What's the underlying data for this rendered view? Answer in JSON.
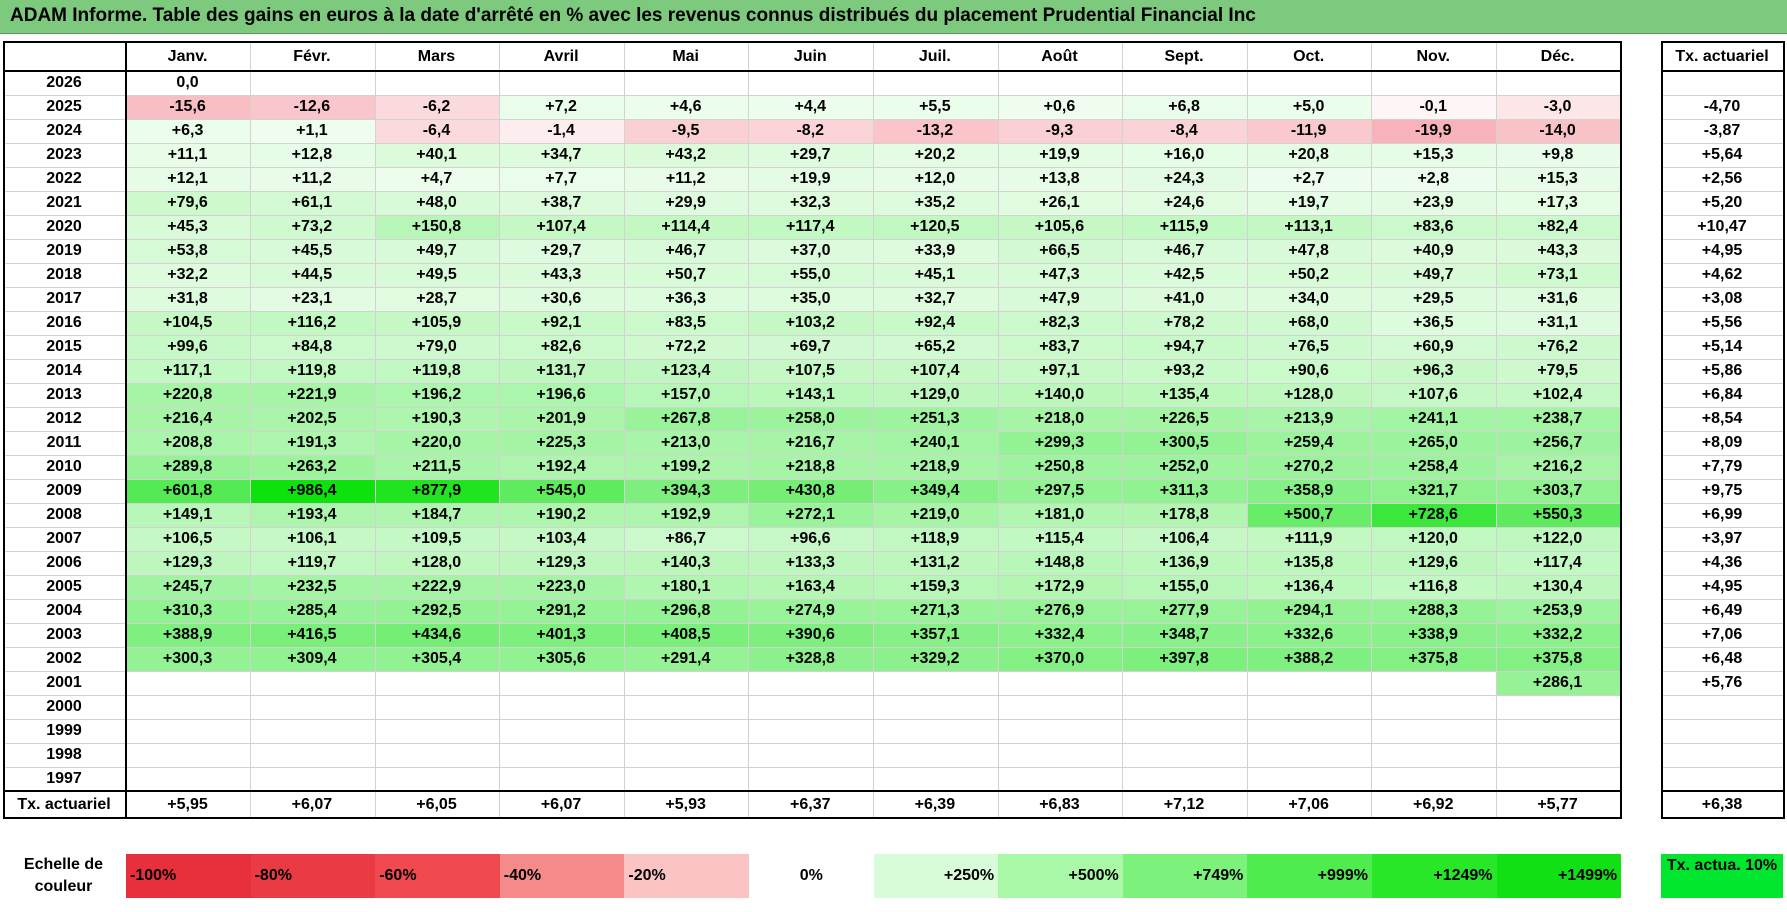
{
  "title": "ADAM Informe. Table des gains en euros à la date d'arrêté en % avec les revenus connus distribués du placement Prudential Financial Inc",
  "months": [
    "Janv.",
    "Févr.",
    "Mars",
    "Avril",
    "Mai",
    "Juin",
    "Juil.",
    "Août",
    "Sept.",
    "Oct.",
    "Nov.",
    "Déc."
  ],
  "actuarial_header": "Tx. actuariel",
  "footer_label": "Tx. actuariel",
  "rows": [
    {
      "year": "2026",
      "values": [
        "0,0",
        "",
        "",
        "",
        "",
        "",
        "",
        "",
        "",
        "",
        "",
        ""
      ],
      "actuarial": ""
    },
    {
      "year": "2025",
      "values": [
        "-15,6",
        "-12,6",
        "-6,2",
        "+7,2",
        "+4,6",
        "+4,4",
        "+5,5",
        "+0,6",
        "+6,8",
        "+5,0",
        "-0,1",
        "-3,0"
      ],
      "actuarial": "-4,70"
    },
    {
      "year": "2024",
      "values": [
        "+6,3",
        "+1,1",
        "-6,4",
        "-1,4",
        "-9,5",
        "-8,2",
        "-13,2",
        "-9,3",
        "-8,4",
        "-11,9",
        "-19,9",
        "-14,0"
      ],
      "actuarial": "-3,87"
    },
    {
      "year": "2023",
      "values": [
        "+11,1",
        "+12,8",
        "+40,1",
        "+34,7",
        "+43,2",
        "+29,7",
        "+20,2",
        "+19,9",
        "+16,0",
        "+20,8",
        "+15,3",
        "+9,8"
      ],
      "actuarial": "+5,64"
    },
    {
      "year": "2022",
      "values": [
        "+12,1",
        "+11,2",
        "+4,7",
        "+7,7",
        "+11,2",
        "+19,9",
        "+12,0",
        "+13,8",
        "+24,3",
        "+2,7",
        "+2,8",
        "+15,3"
      ],
      "actuarial": "+2,56"
    },
    {
      "year": "2021",
      "values": [
        "+79,6",
        "+61,1",
        "+48,0",
        "+38,7",
        "+29,9",
        "+32,3",
        "+35,2",
        "+26,1",
        "+24,6",
        "+19,7",
        "+23,9",
        "+17,3"
      ],
      "actuarial": "+5,20"
    },
    {
      "year": "2020",
      "values": [
        "+45,3",
        "+73,2",
        "+150,8",
        "+107,4",
        "+114,4",
        "+117,4",
        "+120,5",
        "+105,6",
        "+115,9",
        "+113,1",
        "+83,6",
        "+82,4"
      ],
      "actuarial": "+10,47"
    },
    {
      "year": "2019",
      "values": [
        "+53,8",
        "+45,5",
        "+49,7",
        "+29,7",
        "+46,7",
        "+37,0",
        "+33,9",
        "+66,5",
        "+46,7",
        "+47,8",
        "+40,9",
        "+43,3"
      ],
      "actuarial": "+4,95"
    },
    {
      "year": "2018",
      "values": [
        "+32,2",
        "+44,5",
        "+49,5",
        "+43,3",
        "+50,7",
        "+55,0",
        "+45,1",
        "+47,3",
        "+42,5",
        "+50,2",
        "+49,7",
        "+73,1"
      ],
      "actuarial": "+4,62"
    },
    {
      "year": "2017",
      "values": [
        "+31,8",
        "+23,1",
        "+28,7",
        "+30,6",
        "+36,3",
        "+35,0",
        "+32,7",
        "+47,9",
        "+41,0",
        "+34,0",
        "+29,5",
        "+31,6"
      ],
      "actuarial": "+3,08"
    },
    {
      "year": "2016",
      "values": [
        "+104,5",
        "+116,2",
        "+105,9",
        "+92,1",
        "+83,5",
        "+103,2",
        "+92,4",
        "+82,3",
        "+78,2",
        "+68,0",
        "+36,5",
        "+31,1"
      ],
      "actuarial": "+5,56"
    },
    {
      "year": "2015",
      "values": [
        "+99,6",
        "+84,8",
        "+79,0",
        "+82,6",
        "+72,2",
        "+69,7",
        "+65,2",
        "+83,7",
        "+94,7",
        "+76,5",
        "+60,9",
        "+76,2"
      ],
      "actuarial": "+5,14"
    },
    {
      "year": "2014",
      "values": [
        "+117,1",
        "+119,8",
        "+119,8",
        "+131,7",
        "+123,4",
        "+107,5",
        "+107,4",
        "+97,1",
        "+93,2",
        "+90,6",
        "+96,3",
        "+79,5"
      ],
      "actuarial": "+5,86"
    },
    {
      "year": "2013",
      "values": [
        "+220,8",
        "+221,9",
        "+196,2",
        "+196,6",
        "+157,0",
        "+143,1",
        "+129,0",
        "+140,0",
        "+135,4",
        "+128,0",
        "+107,6",
        "+102,4"
      ],
      "actuarial": "+6,84"
    },
    {
      "year": "2012",
      "values": [
        "+216,4",
        "+202,5",
        "+190,3",
        "+201,9",
        "+267,8",
        "+258,0",
        "+251,3",
        "+218,0",
        "+226,5",
        "+213,9",
        "+241,1",
        "+238,7"
      ],
      "actuarial": "+8,54"
    },
    {
      "year": "2011",
      "values": [
        "+208,8",
        "+191,3",
        "+220,0",
        "+225,3",
        "+213,0",
        "+216,7",
        "+240,1",
        "+299,3",
        "+300,5",
        "+259,4",
        "+265,0",
        "+256,7"
      ],
      "actuarial": "+8,09"
    },
    {
      "year": "2010",
      "values": [
        "+289,8",
        "+263,2",
        "+211,5",
        "+192,4",
        "+199,2",
        "+218,8",
        "+218,9",
        "+250,8",
        "+252,0",
        "+270,2",
        "+258,4",
        "+216,2"
      ],
      "actuarial": "+7,79"
    },
    {
      "year": "2009",
      "values": [
        "+601,8",
        "+986,4",
        "+877,9",
        "+545,0",
        "+394,3",
        "+430,8",
        "+349,4",
        "+297,5",
        "+311,3",
        "+358,9",
        "+321,7",
        "+303,7"
      ],
      "actuarial": "+9,75"
    },
    {
      "year": "2008",
      "values": [
        "+149,1",
        "+193,4",
        "+184,7",
        "+190,2",
        "+192,9",
        "+272,1",
        "+219,0",
        "+181,0",
        "+178,8",
        "+500,7",
        "+728,6",
        "+550,3"
      ],
      "actuarial": "+6,99"
    },
    {
      "year": "2007",
      "values": [
        "+106,5",
        "+106,1",
        "+109,5",
        "+103,4",
        "+86,7",
        "+96,6",
        "+118,9",
        "+115,4",
        "+106,4",
        "+111,9",
        "+120,0",
        "+122,0"
      ],
      "actuarial": "+3,97"
    },
    {
      "year": "2006",
      "values": [
        "+129,3",
        "+119,7",
        "+128,0",
        "+129,3",
        "+140,3",
        "+133,3",
        "+131,2",
        "+148,8",
        "+136,9",
        "+135,8",
        "+129,6",
        "+117,4"
      ],
      "actuarial": "+4,36"
    },
    {
      "year": "2005",
      "values": [
        "+245,7",
        "+232,5",
        "+222,9",
        "+223,0",
        "+180,1",
        "+163,4",
        "+159,3",
        "+172,9",
        "+155,0",
        "+136,4",
        "+116,8",
        "+130,4"
      ],
      "actuarial": "+4,95"
    },
    {
      "year": "2004",
      "values": [
        "+310,3",
        "+285,4",
        "+292,5",
        "+291,2",
        "+296,8",
        "+274,9",
        "+271,3",
        "+276,9",
        "+277,9",
        "+294,1",
        "+288,3",
        "+253,9"
      ],
      "actuarial": "+6,49"
    },
    {
      "year": "2003",
      "values": [
        "+388,9",
        "+416,5",
        "+434,6",
        "+401,3",
        "+408,5",
        "+390,6",
        "+357,1",
        "+332,4",
        "+348,7",
        "+332,6",
        "+338,9",
        "+332,2"
      ],
      "actuarial": "+7,06"
    },
    {
      "year": "2002",
      "values": [
        "+300,3",
        "+309,4",
        "+305,4",
        "+305,6",
        "+291,4",
        "+328,8",
        "+329,2",
        "+370,0",
        "+397,8",
        "+388,2",
        "+375,8",
        "+375,8"
      ],
      "actuarial": "+6,48"
    },
    {
      "year": "2001",
      "values": [
        "",
        "",
        "",
        "",
        "",
        "",
        "",
        "",
        "",
        "",
        "",
        "+286,1"
      ],
      "actuarial": "+5,76"
    },
    {
      "year": "2000",
      "values": [
        "",
        "",
        "",
        "",
        "",
        "",
        "",
        "",
        "",
        "",
        "",
        ""
      ],
      "actuarial": ""
    },
    {
      "year": "1999",
      "values": [
        "",
        "",
        "",
        "",
        "",
        "",
        "",
        "",
        "",
        "",
        "",
        ""
      ],
      "actuarial": ""
    },
    {
      "year": "1998",
      "values": [
        "",
        "",
        "",
        "",
        "",
        "",
        "",
        "",
        "",
        "",
        "",
        ""
      ],
      "actuarial": ""
    },
    {
      "year": "1997",
      "values": [
        "",
        "",
        "",
        "",
        "",
        "",
        "",
        "",
        "",
        "",
        "",
        ""
      ],
      "actuarial": ""
    }
  ],
  "footer_values": [
    "+5,95",
    "+6,07",
    "+6,05",
    "+6,07",
    "+5,93",
    "+6,37",
    "+6,39",
    "+6,83",
    "+7,12",
    "+7,06",
    "+6,92",
    "+5,77"
  ],
  "footer_actuarial": "+6,38",
  "scale": {
    "label": "Echelle de couleur",
    "items": [
      {
        "label": "-100%",
        "color": "#e8303c"
      },
      {
        "label": "-80%",
        "color": "#ea3a44"
      },
      {
        "label": "-60%",
        "color": "#f04a50"
      },
      {
        "label": "-40%",
        "color": "#f58a8a"
      },
      {
        "label": "-20%",
        "color": "#fbc4c4"
      },
      {
        "label": "0%",
        "color": "#ffffff"
      },
      {
        "label": "+250%",
        "color": "#d8fcd8"
      },
      {
        "label": "+500%",
        "color": "#a8f8a8"
      },
      {
        "label": "+749%",
        "color": "#7cf27c"
      },
      {
        "label": "+999%",
        "color": "#4eec4e"
      },
      {
        "label": "+1249%",
        "color": "#28e628"
      },
      {
        "label": "+1499%",
        "color": "#10e014"
      }
    ],
    "actuarial_label": "Tx. actua. 10%",
    "actuarial_color": "#00e62e"
  },
  "colors": {
    "title_bar": "#7dc97d",
    "positive_max": "#00e000",
    "negative_max": "#e83040"
  }
}
